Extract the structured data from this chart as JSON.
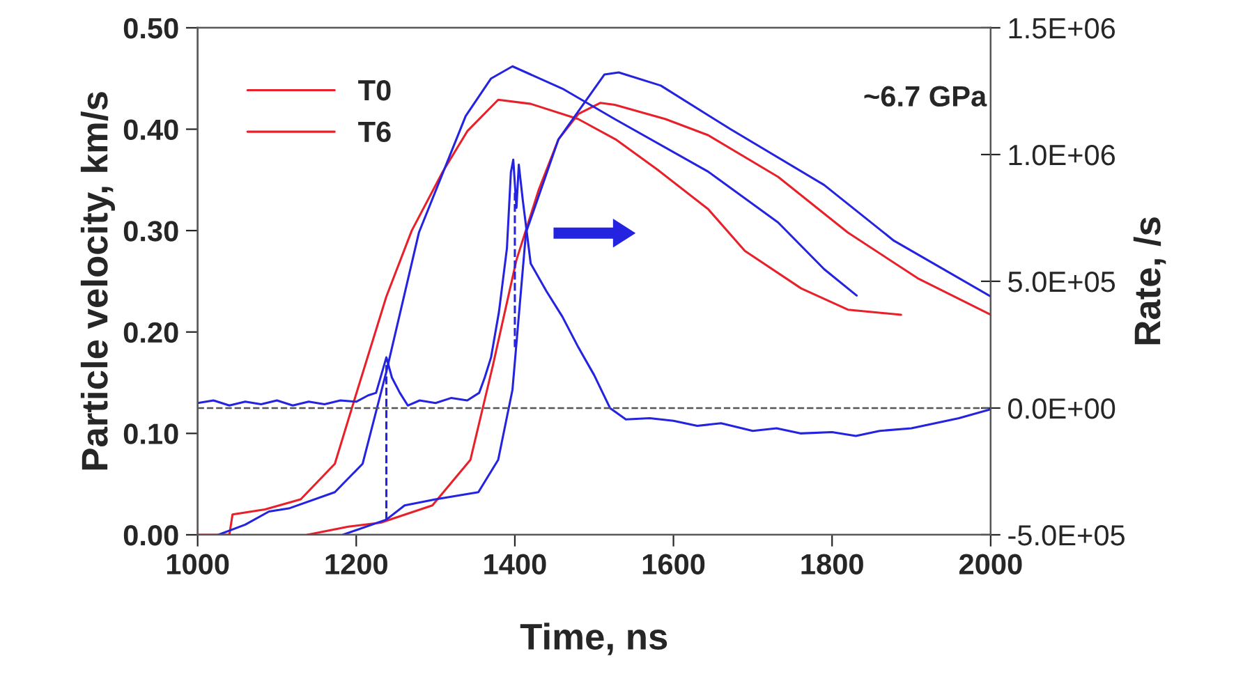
{
  "chart_data": {
    "type": "line",
    "xlabel": "Time, ns",
    "ylabel": "Particle velocity, km/s",
    "y2label": "Rate, /s",
    "xlim": [
      1000,
      2000
    ],
    "xticks": [
      1000,
      1200,
      1400,
      1600,
      1800,
      2000
    ],
    "ylim": [
      0,
      0.5
    ],
    "yticks": [
      {
        "value": 0,
        "label": "0.00"
      },
      {
        "value": 0.1,
        "label": "0.10"
      },
      {
        "value": 0.2,
        "label": "0.20"
      },
      {
        "value": 0.3,
        "label": "0.30"
      },
      {
        "value": 0.4,
        "label": "0.40"
      },
      {
        "value": 0.5,
        "label": "0.50"
      }
    ],
    "y2lim": [
      -500000,
      1500000
    ],
    "y2ticks": [
      {
        "value": -500000,
        "label": "-5.0E+05"
      },
      {
        "value": 0,
        "label": "0.0E+00"
      },
      {
        "value": 500000,
        "label": "5.0E+05"
      },
      {
        "value": 1000000,
        "label": "1.0E+06"
      },
      {
        "value": 1500000,
        "label": "1.5E+06"
      }
    ],
    "legend": "top left",
    "grid": false,
    "marker": "none",
    "annotations": [
      "~6.7 GPa"
    ],
    "ref_lines": [
      {
        "axis": "y2",
        "value": 0,
        "color": "#555555",
        "line_style": "dashed"
      }
    ],
    "series": [
      {
        "name": "T0",
        "color": "#e8202a",
        "x": [
          1000,
          1040,
          1044,
          1085,
          1130,
          1173,
          1200,
          1238,
          1270,
          1309,
          1340,
          1379,
          1420,
          1480,
          1527,
          1580,
          1644,
          1690,
          1761,
          1820,
          1887
        ],
        "values": [
          0,
          0,
          0.02,
          0.025,
          0.035,
          0.07,
          0.139,
          0.235,
          0.3,
          0.358,
          0.398,
          0.429,
          0.425,
          0.41,
          0.39,
          0.36,
          0.321,
          0.28,
          0.243,
          0.222,
          0.217
        ]
      },
      {
        "name": "T6",
        "color": "#e8202a",
        "x": [
          1138,
          1190,
          1231,
          1296,
          1344,
          1372,
          1402,
          1430,
          1455,
          1480,
          1508,
          1526,
          1590,
          1644,
          1732,
          1820,
          1908,
          2000
        ],
        "values": [
          0,
          0.008,
          0.012,
          0.029,
          0.074,
          0.166,
          0.271,
          0.34,
          0.39,
          0.415,
          0.426,
          0.424,
          0.41,
          0.394,
          0.353,
          0.298,
          0.253,
          0.217
        ]
      },
      {
        "color": "#2323e0",
        "x": [
          1026,
          1060,
          1090,
          1115,
          1173,
          1208,
          1238,
          1279,
          1338,
          1370,
          1397,
          1460,
          1526,
          1644,
          1732,
          1790,
          1831
        ],
        "values": [
          0,
          0.01,
          0.023,
          0.026,
          0.042,
          0.07,
          0.161,
          0.298,
          0.413,
          0.45,
          0.462,
          0.44,
          0.41,
          0.358,
          0.308,
          0.262,
          0.236
        ]
      },
      {
        "color": "#2323e0",
        "x": [
          1183,
          1238,
          1261,
          1300,
          1354,
          1379,
          1397,
          1414,
          1455,
          1513,
          1531,
          1584,
          1672,
          1790,
          1878,
          2000
        ],
        "values": [
          0,
          0.015,
          0.029,
          0.035,
          0.042,
          0.074,
          0.143,
          0.298,
          0.39,
          0.454,
          0.456,
          0.443,
          0.4,
          0.345,
          0.29,
          0.235
        ]
      },
      {
        "color": "#2323e0",
        "axis": "y2",
        "x": [
          1000,
          1020,
          1040,
          1060,
          1080,
          1100,
          1120,
          1140,
          1160,
          1180,
          1200,
          1215,
          1225,
          1238,
          1245,
          1255,
          1265,
          1280,
          1300,
          1320,
          1340,
          1355,
          1362,
          1370,
          1380,
          1390,
          1395,
          1398,
          1402,
          1405,
          1410,
          1420,
          1440,
          1460,
          1480,
          1500,
          1520,
          1540,
          1570,
          1600,
          1630,
          1660,
          1700,
          1730,
          1760,
          1800,
          1830,
          1860,
          1900,
          1930,
          1960,
          2000
        ],
        "values": [
          20000,
          30000,
          10000,
          25000,
          15000,
          30000,
          10000,
          25000,
          15000,
          30000,
          25000,
          50000,
          60000,
          200000,
          120000,
          60000,
          10000,
          30000,
          20000,
          40000,
          30000,
          60000,
          120000,
          200000,
          380000,
          630000,
          930000,
          980000,
          790000,
          960000,
          820000,
          570000,
          460000,
          360000,
          240000,
          130000,
          0,
          -45000,
          -40000,
          -50000,
          -70000,
          -60000,
          -90000,
          -80000,
          -100000,
          -95000,
          -110000,
          -90000,
          -80000,
          -60000,
          -40000,
          -5000
        ]
      },
      {
        "color": "#2323e0",
        "line_style": "dashed",
        "x": [
          1238,
          1238
        ],
        "values": [
          0.015,
          0.173
        ]
      },
      {
        "color": "#2323e0",
        "line_style": "dashed",
        "x": [
          1400,
          1400
        ],
        "values": [
          0.185,
          0.34
        ]
      }
    ]
  }
}
